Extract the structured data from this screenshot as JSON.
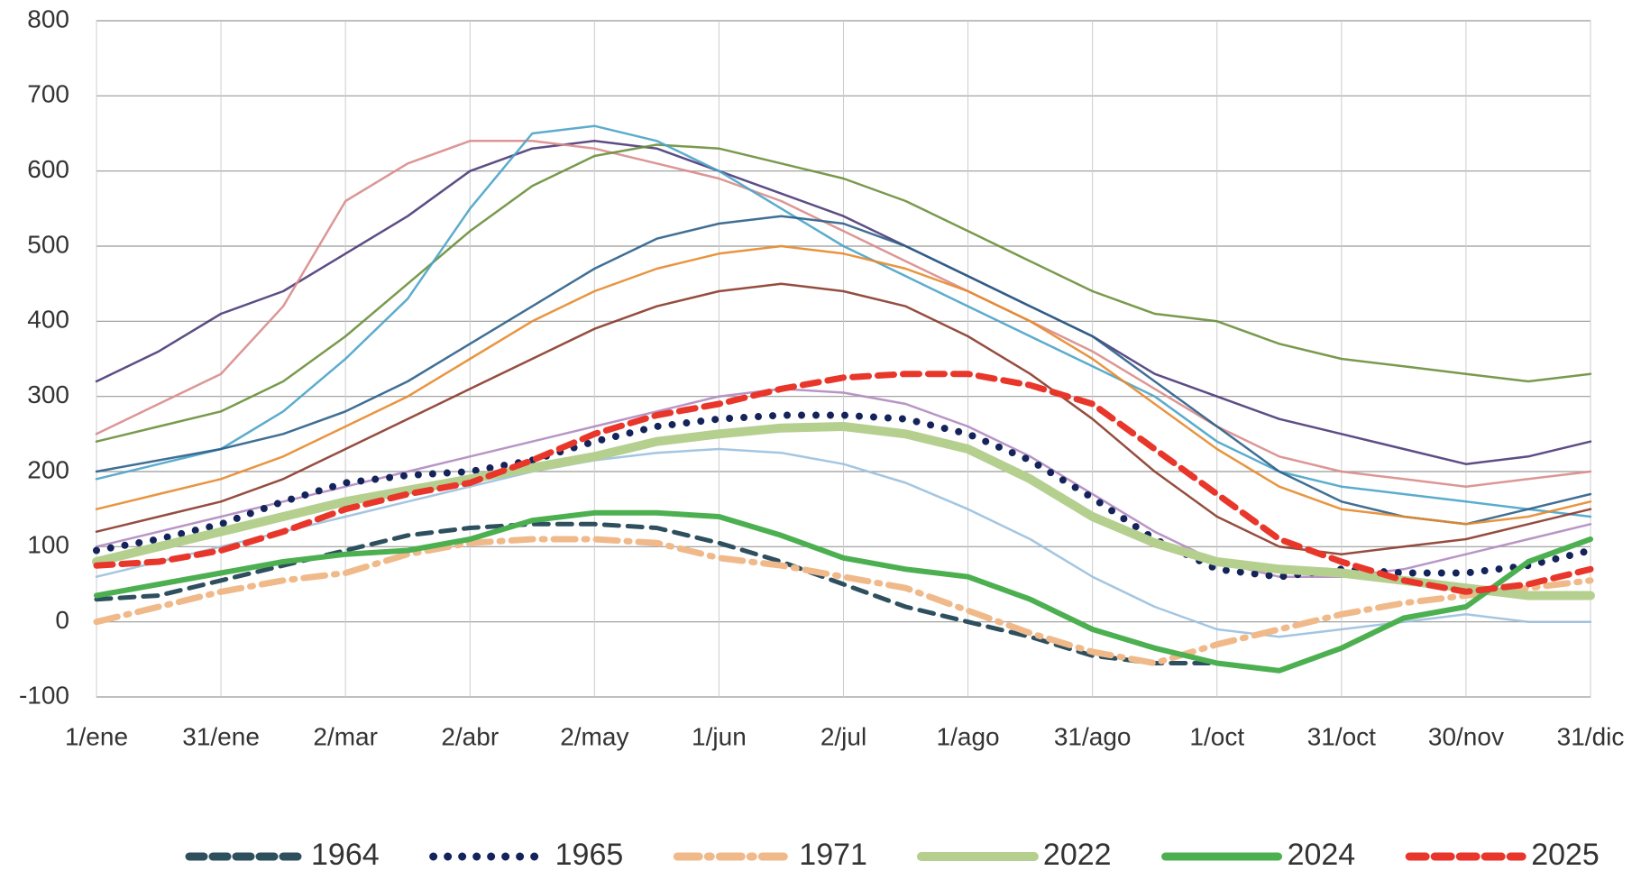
{
  "chart_data": {
    "type": "line",
    "categories": [
      "1/ene",
      null,
      "31/ene",
      null,
      "2/mar",
      null,
      "2/abr",
      null,
      "2/may",
      null,
      "1/jun",
      null,
      "2/jul",
      null,
      "1/ago",
      null,
      "31/ago",
      null,
      "1/oct",
      null,
      "31/oct",
      null,
      "30/nov",
      null,
      "31/dic"
    ],
    "ylim": [
      -100,
      800
    ],
    "yticks": [
      -100,
      0,
      100,
      200,
      300,
      400,
      500,
      600,
      700,
      800
    ],
    "grid": true,
    "series": [
      {
        "color": "#4b3a78",
        "width": 2.5,
        "values": [
          320,
          360,
          410,
          440,
          490,
          540,
          600,
          630,
          640,
          630,
          600,
          570,
          540,
          500,
          460,
          420,
          380,
          330,
          300,
          270,
          250,
          230,
          210,
          220,
          240
        ]
      },
      {
        "color": "#d98b8b",
        "width": 2.5,
        "values": [
          250,
          290,
          330,
          420,
          560,
          610,
          640,
          640,
          630,
          610,
          590,
          560,
          520,
          480,
          440,
          400,
          360,
          310,
          260,
          220,
          200,
          190,
          180,
          190,
          200
        ]
      },
      {
        "color": "#6a8f3a",
        "width": 2.5,
        "values": [
          240,
          260,
          280,
          320,
          380,
          450,
          520,
          580,
          620,
          635,
          630,
          610,
          590,
          560,
          520,
          480,
          440,
          410,
          400,
          370,
          350,
          340,
          330,
          320,
          330
        ]
      },
      {
        "color": "#4aa3c8",
        "width": 2.5,
        "values": [
          190,
          210,
          230,
          280,
          350,
          430,
          550,
          650,
          660,
          640,
          600,
          550,
          500,
          460,
          420,
          380,
          340,
          300,
          240,
          200,
          180,
          170,
          160,
          150,
          140
        ]
      },
      {
        "color": "#2b5f8a",
        "width": 2.5,
        "values": [
          200,
          215,
          230,
          250,
          280,
          320,
          370,
          420,
          470,
          510,
          530,
          540,
          530,
          500,
          460,
          420,
          380,
          320,
          260,
          200,
          160,
          140,
          130,
          150,
          170
        ]
      },
      {
        "color": "#e6892b",
        "width": 2.5,
        "values": [
          150,
          170,
          190,
          220,
          260,
          300,
          350,
          400,
          440,
          470,
          490,
          500,
          490,
          470,
          440,
          400,
          350,
          290,
          230,
          180,
          150,
          140,
          130,
          140,
          160
        ]
      },
      {
        "color": "#8a3a2a",
        "width": 2.5,
        "values": [
          120,
          140,
          160,
          190,
          230,
          270,
          310,
          350,
          390,
          420,
          440,
          450,
          440,
          420,
          380,
          330,
          270,
          200,
          140,
          100,
          90,
          100,
          110,
          130,
          150
        ]
      },
      {
        "color": "#9ac0de",
        "width": 2.5,
        "values": [
          60,
          80,
          100,
          120,
          140,
          160,
          180,
          200,
          215,
          225,
          230,
          225,
          210,
          185,
          150,
          110,
          60,
          20,
          -10,
          -20,
          -10,
          0,
          10,
          0,
          0
        ]
      },
      {
        "color": "#b08ac0",
        "width": 2.5,
        "values": [
          100,
          120,
          140,
          160,
          180,
          200,
          220,
          240,
          260,
          280,
          300,
          310,
          305,
          290,
          260,
          220,
          170,
          120,
          80,
          60,
          60,
          70,
          90,
          110,
          130
        ]
      },
      {
        "name": "1964",
        "color": "#2e4f5e",
        "width": 5,
        "dash": "16,10",
        "values": [
          30,
          35,
          55,
          75,
          95,
          115,
          125,
          130,
          130,
          125,
          105,
          80,
          50,
          20,
          0,
          -20,
          -45,
          -55,
          -55,
          null,
          null,
          null,
          null,
          null,
          null
        ]
      },
      {
        "name": "1965",
        "color": "#14235a",
        "width": 8,
        "dash": "0,16",
        "values": [
          95,
          110,
          130,
          160,
          185,
          195,
          200,
          215,
          240,
          260,
          270,
          275,
          275,
          270,
          250,
          215,
          165,
          110,
          70,
          60,
          70,
          65,
          65,
          75,
          95
        ]
      },
      {
        "name": "1971",
        "color": "#f0b98a",
        "width": 7,
        "dash": "24,10,3,10",
        "values": [
          0,
          20,
          40,
          55,
          65,
          90,
          105,
          110,
          110,
          105,
          85,
          75,
          60,
          45,
          15,
          -15,
          -40,
          -55,
          -30,
          -10,
          10,
          25,
          35,
          45,
          55
        ]
      },
      {
        "name": "2022",
        "color": "#b5cf8f",
        "width": 10,
        "values": [
          80,
          100,
          120,
          140,
          160,
          175,
          190,
          205,
          220,
          240,
          250,
          258,
          260,
          250,
          230,
          190,
          140,
          105,
          80,
          70,
          65,
          55,
          45,
          35,
          35
        ]
      },
      {
        "name": "2024",
        "color": "#4caf50",
        "width": 6,
        "values": [
          35,
          50,
          65,
          80,
          90,
          95,
          110,
          135,
          145,
          145,
          140,
          115,
          85,
          70,
          60,
          30,
          -10,
          -35,
          -55,
          -65,
          -35,
          5,
          20,
          80,
          110
        ]
      },
      {
        "name": "2025",
        "color": "#e8362a",
        "width": 7,
        "dash": "18,10",
        "values": [
          75,
          80,
          95,
          120,
          150,
          170,
          185,
          215,
          250,
          275,
          290,
          310,
          325,
          330,
          330,
          315,
          290,
          230,
          170,
          110,
          80,
          55,
          40,
          50,
          70
        ]
      }
    ]
  }
}
